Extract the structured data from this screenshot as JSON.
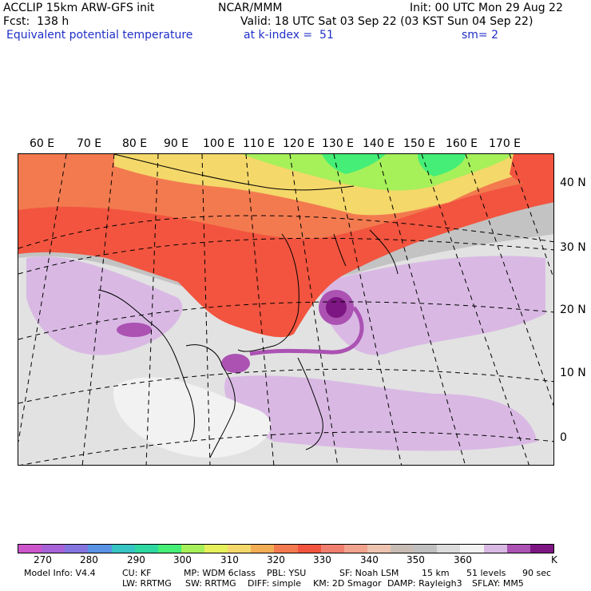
{
  "header": {
    "model_title": "ACCLIP 15km ARW-GFS init",
    "center": "NCAR/MMM",
    "init": "Init: 00 UTC Mon 29 Aug 22",
    "fcst_label": "Fcst:  138 h",
    "valid": "Valid: 18 UTC Sat 03 Sep 22 (03 KST Sun 04 Sep 22)",
    "field_name": "Equivalent potential temperature",
    "level": "at k-index =  51",
    "smooth": "sm= 2"
  },
  "map": {
    "lon_labels": [
      "60 E",
      "70 E",
      "80 E",
      "90 E",
      "100 E",
      "110 E",
      "120 E",
      "130 E",
      "140 E",
      "150 E",
      "160 E",
      "170 E"
    ],
    "lat_labels": [
      "40 N",
      "30 N",
      "20 N",
      "10 N",
      "0"
    ]
  },
  "colorbar": {
    "unit": "K",
    "colors": [
      "#cc55cc",
      "#a862d8",
      "#8474e0",
      "#5a92e6",
      "#36c4c4",
      "#2ed8a0",
      "#44ee77",
      "#a6f05a",
      "#e6f05a",
      "#f4d86a",
      "#f3ad55",
      "#f37a4f",
      "#f2543f",
      "#f07f6f",
      "#f2a38e",
      "#eec4b0",
      "#c8bdb5",
      "#c0c0c0",
      "#dcdcdc",
      "#f2f2f2",
      "#d9b9e4",
      "#ab52b3",
      "#7d1682"
    ],
    "tick_labels": [
      "270",
      "280",
      "290",
      "300",
      "310",
      "320",
      "330",
      "340",
      "350",
      "360"
    ]
  },
  "footer": {
    "line1": [
      "Model Info: V4.4",
      "CU: KF",
      "MP: WDM 6class",
      "PBL: YSU",
      "SF: Noah LSM",
      "15 km",
      "51 levels",
      "90 sec"
    ],
    "line2": [
      "LW: RRTMG",
      "SW: RRTMG",
      "DIFF: simple",
      "KM: 2D Smagor",
      "DAMP: Rayleigh3",
      "SFLAY: MM5"
    ]
  }
}
